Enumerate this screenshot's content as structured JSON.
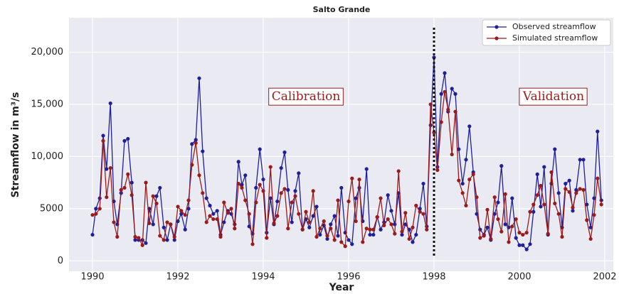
{
  "chart_data": {
    "type": "line",
    "title": "Salto Grande",
    "xlabel": "Year",
    "ylabel": "Streamflow in m³/s",
    "x": [
      1990,
      1990.08,
      1990.17,
      1990.25,
      1990.33,
      1990.42,
      1990.5,
      1990.58,
      1990.67,
      1990.75,
      1990.83,
      1990.92,
      1991,
      1991.08,
      1991.17,
      1991.25,
      1991.33,
      1991.42,
      1991.5,
      1991.58,
      1991.67,
      1991.75,
      1991.83,
      1991.92,
      1992,
      1992.08,
      1992.17,
      1992.25,
      1992.33,
      1992.42,
      1992.5,
      1992.58,
      1992.67,
      1992.75,
      1992.83,
      1992.92,
      1993,
      1993.08,
      1993.17,
      1993.25,
      1993.33,
      1993.42,
      1993.5,
      1993.58,
      1993.67,
      1993.75,
      1993.83,
      1993.92,
      1994,
      1994.08,
      1994.17,
      1994.25,
      1994.33,
      1994.42,
      1994.5,
      1994.58,
      1994.67,
      1994.75,
      1994.83,
      1994.92,
      1995,
      1995.08,
      1995.17,
      1995.25,
      1995.33,
      1995.42,
      1995.5,
      1995.58,
      1995.67,
      1995.75,
      1995.83,
      1995.92,
      1996,
      1996.08,
      1996.17,
      1996.25,
      1996.33,
      1996.42,
      1996.5,
      1996.58,
      1996.67,
      1996.75,
      1996.83,
      1996.92,
      1997,
      1997.08,
      1997.17,
      1997.25,
      1997.33,
      1997.42,
      1997.5,
      1997.58,
      1997.67,
      1997.75,
      1997.83,
      1997.92,
      1998,
      1998.08,
      1998.17,
      1998.25,
      1998.33,
      1998.42,
      1998.5,
      1998.58,
      1998.67,
      1998.75,
      1998.83,
      1998.92,
      1999,
      1999.08,
      1999.17,
      1999.25,
      1999.33,
      1999.42,
      1999.5,
      1999.58,
      1999.67,
      1999.75,
      1999.83,
      1999.92,
      2000,
      2000.08,
      2000.17,
      2000.25,
      2000.33,
      2000.42,
      2000.5,
      2000.58,
      2000.67,
      2000.75,
      2000.83,
      2000.92,
      2001,
      2001.08,
      2001.17,
      2001.25,
      2001.33,
      2001.42,
      2001.5,
      2001.58,
      2001.67,
      2001.75,
      2001.83,
      2001.92
    ],
    "series": [
      {
        "name": "Observed streamflow",
        "color": "#1f1f9a",
        "values": [
          2500,
          5000,
          6000,
          12000,
          8800,
          15100,
          5700,
          3500,
          6500,
          11500,
          11700,
          7500,
          2000,
          2000,
          2000,
          1700,
          5000,
          3500,
          6200,
          7000,
          3200,
          2000,
          3500,
          2000,
          3800,
          4500,
          3000,
          5000,
          11200,
          11600,
          17500,
          10500,
          6000,
          5300,
          4500,
          4800,
          2500,
          3700,
          4800,
          4500,
          3500,
          9500,
          7300,
          8200,
          3300,
          2600,
          7000,
          10700,
          7800,
          2700,
          6000,
          3500,
          5700,
          8900,
          10400,
          6800,
          3700,
          6700,
          8400,
          3000,
          4000,
          3200,
          4300,
          5200,
          2500,
          3400,
          2100,
          3500,
          4300,
          2400,
          7000,
          2700,
          2000,
          1600,
          6000,
          7000,
          3800,
          8800,
          2500,
          2500,
          4200,
          3000,
          3700,
          6300,
          4800,
          3500,
          6500,
          2500,
          3500,
          3000,
          1800,
          2500,
          5000,
          7400,
          3300,
          13000,
          19500,
          9000,
          16000,
          18000,
          14300,
          16500,
          16000,
          10700,
          7400,
          9700,
          12900,
          8500,
          4500,
          3000,
          2500,
          3200,
          2000,
          4500,
          5600,
          9100,
          3500,
          3200,
          6000,
          2200,
          1500,
          1500,
          1100,
          1600,
          4700,
          8300,
          5200,
          9000,
          2500,
          7400,
          10700,
          6500,
          3200,
          7400,
          7700,
          4800,
          6800,
          9700,
          9700,
          5400,
          3200,
          6000,
          12400,
          5800
        ]
      },
      {
        "name": "Simulated streamflow",
        "color": "#9b1b1b",
        "values": [
          4400,
          4500,
          5000,
          11500,
          6100,
          8900,
          3700,
          2300,
          6800,
          7000,
          8300,
          6300,
          2300,
          2200,
          1500,
          7500,
          3600,
          6200,
          5500,
          2400,
          2000,
          3700,
          3500,
          2300,
          5200,
          4800,
          4400,
          5800,
          9200,
          11300,
          8200,
          6500,
          3700,
          4300,
          4000,
          4000,
          2300,
          5600,
          4600,
          5000,
          3100,
          7400,
          7000,
          5800,
          4500,
          1600,
          5600,
          7300,
          6700,
          2200,
          9000,
          3600,
          4300,
          6500,
          6900,
          3100,
          5600,
          6200,
          4500,
          3000,
          4700,
          3700,
          6700,
          2300,
          3100,
          3800,
          2400,
          3100,
          2000,
          5800,
          1800,
          1400,
          5700,
          7900,
          3800,
          7800,
          1800,
          3100,
          3000,
          3000,
          4200,
          6000,
          3400,
          4000,
          3500,
          2600,
          8600,
          2800,
          4600,
          2100,
          3200,
          5300,
          4700,
          4500,
          3000,
          15000,
          12300,
          8700,
          13300,
          16200,
          14500,
          10200,
          14300,
          7700,
          6500,
          5300,
          7800,
          8300,
          6100,
          2200,
          2400,
          4900,
          2100,
          6100,
          4000,
          2800,
          6400,
          1800,
          3300,
          4000,
          2700,
          2500,
          2700,
          4700,
          5400,
          6300,
          7200,
          5400,
          2600,
          8500,
          5500,
          4500,
          2300,
          6900,
          6600,
          5100,
          6500,
          6900,
          6800,
          3900,
          2100,
          4400,
          7900,
          5400
        ]
      }
    ],
    "xlim": [
      1989.45,
      2002.2
    ],
    "xticks": [
      1990,
      1992,
      1994,
      1996,
      1998,
      2000,
      2002
    ],
    "ylim": [
      -1000,
      23300
    ],
    "yticks": [
      0,
      5000,
      {
        "value": 10000,
        "label": "10,000"
      },
      {
        "value": 15000,
        "label": "15,000"
      },
      {
        "value": 20000,
        "label": "20,000"
      }
    ],
    "grid": true,
    "legend": "upper right",
    "vline": 1998,
    "annotations": [
      "Calibration",
      "Validation"
    ]
  }
}
